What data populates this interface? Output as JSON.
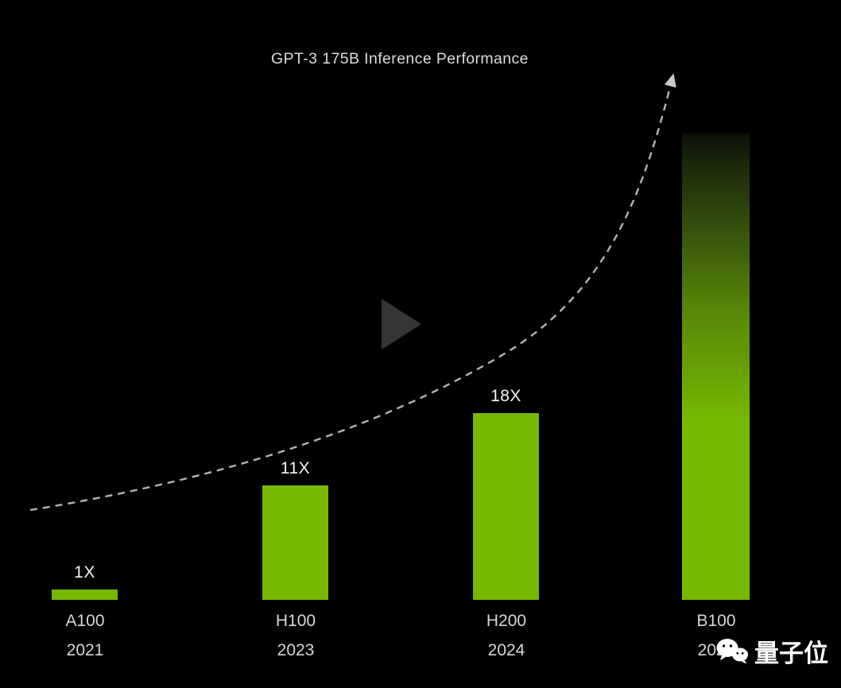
{
  "chart_data": {
    "type": "bar",
    "title": "GPT-3 175B Inference Performance",
    "categories": [
      "A100 2021",
      "H100 2023",
      "H200 2024",
      "B100 2024"
    ],
    "values": [
      1,
      11,
      18,
      45
    ],
    "bar_labels": [
      "1X",
      "11X",
      "18X",
      ""
    ],
    "ticks": [
      {
        "name": "A100",
        "year": "2021"
      },
      {
        "name": "H100",
        "year": "2023"
      },
      {
        "name": "H200",
        "year": "2024"
      },
      {
        "name": "B100",
        "year": "2024"
      }
    ],
    "xlabel": "",
    "ylabel": "",
    "ylim": [
      0,
      60
    ],
    "grid": false,
    "legend": false,
    "bar_color": "#76b900",
    "annotations": [
      "dashed exponential trend curve rising left-to-right ending in an arrowhead",
      "B100 bar has no value label, extends toward top of frame and fades to dark at its top (estimated ~45X from bar height)"
    ]
  },
  "colors": {
    "background": "#000000",
    "bar": "#76b900",
    "title_text": "#dcdcdc",
    "value_text": "#f5f5f5",
    "tick_text": "#d6d6d6",
    "trend_line": "#b4b4b4"
  },
  "overlay": {
    "play_icon": "play-icon"
  },
  "watermark": {
    "text": "量子位",
    "icon": "wechat-icon"
  }
}
